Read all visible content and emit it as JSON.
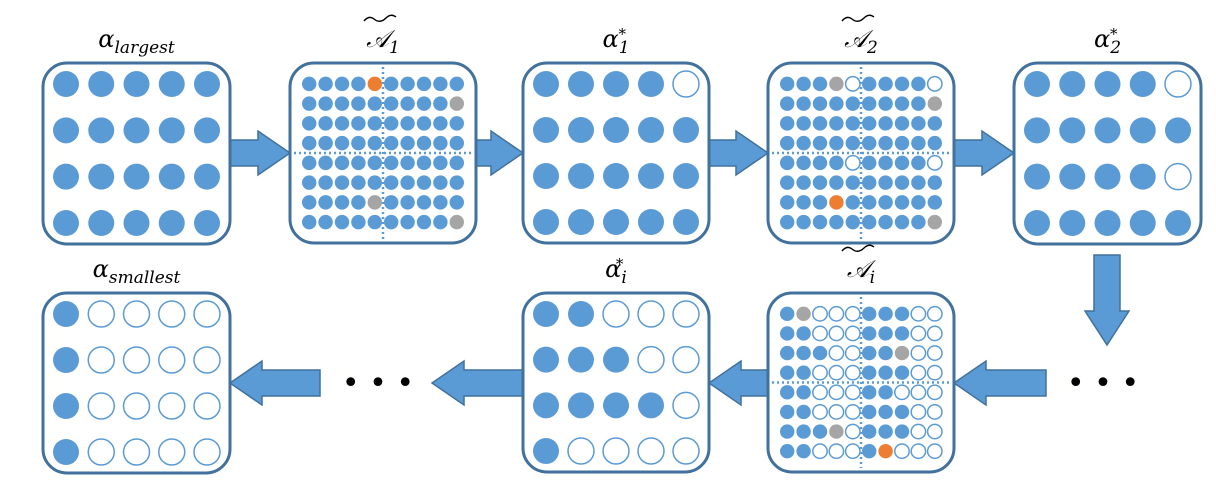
{
  "colors": {
    "filled": "#5b9bd5",
    "empty": "#ffffff",
    "border": "#41719c",
    "orange": "#ed7d31",
    "gray": "#a5a5a5",
    "divider": "#5b9bd5"
  },
  "ellipsis": "• • •",
  "panels": [
    {
      "id": "alpha-largest",
      "kind": "coarse",
      "label": {
        "base": "α",
        "sub": "largest",
        "sup": "",
        "tilde": false
      },
      "grid": [
        "FFFFF",
        "FFFFF",
        "FFFFF",
        "FFFFF"
      ]
    },
    {
      "id": "a-tilde-1",
      "kind": "fine",
      "label": {
        "base": "𝒜",
        "sub": "1",
        "sup": "",
        "tilde": true
      },
      "grid": [
        "FFFFOFFFFF",
        "FFFFFFFFFG",
        "FFFFFFFFFF",
        "FFFFFFFFFF",
        "FFFFFFFFFF",
        "FFFFFFFFFF",
        "FFFFGFFFFF",
        "FFFFFFFFFG"
      ]
    },
    {
      "id": "alpha-star-1",
      "kind": "coarse",
      "label": {
        "base": "α",
        "sub": "1",
        "sup": "*",
        "tilde": false
      },
      "grid": [
        "FFFFE",
        "FFFFF",
        "FFFFF",
        "FFFFF"
      ]
    },
    {
      "id": "a-tilde-2",
      "kind": "fine",
      "label": {
        "base": "𝒜",
        "sub": "2",
        "sup": "",
        "tilde": true
      },
      "grid": [
        "FFFGEFFFFE",
        "FFFFFFFFFG",
        "FFFFFFFFFF",
        "FFFFFFFFFF",
        "FFFFEFFFFE",
        "FFFFFFFFFF",
        "FFFOFFFFFF",
        "FFFFFFFFFG"
      ]
    },
    {
      "id": "alpha-star-2",
      "kind": "coarse",
      "label": {
        "base": "α",
        "sub": "2",
        "sup": "*",
        "tilde": false
      },
      "grid": [
        "FFFFE",
        "FFFFF",
        "FFFFE",
        "FFFFF"
      ]
    },
    {
      "id": "a-tilde-i",
      "kind": "fine",
      "label": {
        "base": "𝒜",
        "sub": "i",
        "sup": "",
        "tilde": true
      },
      "grid": [
        "FGEEEFFFEE",
        "FFEEEFFFEE",
        "FFFEEFFGEE",
        "FFEEEFFFEE",
        "FFEEEFFEEE",
        "FFEEEFFFEE",
        "FFFGEFFFEE",
        "FFEEEFOEEE"
      ]
    },
    {
      "id": "alpha-star-i",
      "kind": "coarse",
      "label": {
        "base": "α",
        "sub": "i",
        "sup": "*",
        "tilde": false
      },
      "grid": [
        "FFEEE",
        "FFFEE",
        "FFFFE",
        "FEEEE"
      ]
    },
    {
      "id": "alpha-smallest",
      "kind": "coarse",
      "label": {
        "base": "α",
        "sub": "smallest",
        "sup": "",
        "tilde": false
      },
      "grid": [
        "FEEEE",
        "FEEEE",
        "FEEEE",
        "FEEEE"
      ]
    }
  ]
}
